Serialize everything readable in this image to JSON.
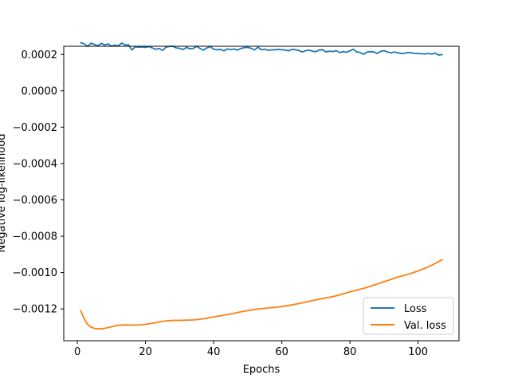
{
  "chart_data": {
    "type": "line",
    "title": "",
    "xlabel": "Epochs",
    "ylabel": "Negative log-likelihood",
    "xlim": [
      -4,
      112
    ],
    "ylim": [
      -0.001375,
      0.000245
    ],
    "xticks": [
      0,
      20,
      40,
      60,
      80,
      100
    ],
    "xtick_labels": [
      "0",
      "20",
      "40",
      "60",
      "80",
      "100"
    ],
    "yticks": [
      0.0002,
      0.0,
      -0.0002,
      -0.0004,
      -0.0006,
      -0.0008,
      -0.001,
      -0.0012
    ],
    "ytick_labels": [
      "0.0002",
      "0.0000",
      "−0.0002",
      "−0.0004",
      "−0.0006",
      "−0.0008",
      "−0.0010",
      "−0.0012"
    ],
    "grid": false,
    "legend_position": "lower-right",
    "series": [
      {
        "name": "Loss",
        "color": "#1f77b4",
        "x": [
          1,
          2,
          3,
          4,
          5,
          6,
          7,
          8,
          9,
          10,
          11,
          12,
          13,
          14,
          15,
          16,
          17,
          18,
          19,
          20,
          21,
          22,
          23,
          24,
          25,
          26,
          27,
          28,
          29,
          30,
          31,
          32,
          33,
          34,
          35,
          36,
          37,
          38,
          39,
          40,
          41,
          42,
          43,
          44,
          45,
          46,
          47,
          48,
          49,
          50,
          51,
          52,
          53,
          54,
          55,
          56,
          57,
          58,
          59,
          60,
          61,
          62,
          63,
          64,
          65,
          66,
          67,
          68,
          69,
          70,
          71,
          72,
          73,
          74,
          75,
          76,
          77,
          78,
          79,
          80,
          81,
          82,
          83,
          84,
          85,
          86,
          87,
          88,
          89,
          90,
          91,
          92,
          93,
          94,
          95,
          96,
          97,
          98,
          99,
          100,
          101,
          102,
          103,
          104,
          105,
          106,
          107
        ],
        "y": [
          0.000264,
          0.000259,
          0.000244,
          0.000262,
          0.000255,
          0.000248,
          0.000261,
          0.000252,
          0.000258,
          0.000245,
          0.000251,
          0.000247,
          0.000263,
          0.000252,
          0.000253,
          0.000225,
          0.000242,
          0.00024,
          0.000241,
          0.000239,
          0.000243,
          0.000236,
          0.000228,
          0.000233,
          0.000222,
          0.00024,
          0.000244,
          0.000245,
          0.000236,
          0.000234,
          0.000227,
          0.000239,
          0.000231,
          0.000233,
          0.000245,
          0.000233,
          0.000224,
          0.000236,
          0.000243,
          0.000229,
          0.000226,
          0.000228,
          0.00022,
          0.00023,
          0.000227,
          0.00023,
          0.000224,
          0.000233,
          0.000238,
          0.000239,
          0.000234,
          0.000225,
          0.00024,
          0.000226,
          0.000229,
          0.000223,
          0.000225,
          0.000226,
          0.000228,
          0.000226,
          0.000224,
          0.00022,
          0.000228,
          0.000226,
          0.000222,
          0.000214,
          0.000221,
          0.000224,
          0.000218,
          0.000215,
          0.000225,
          0.000226,
          0.000214,
          0.000218,
          0.000216,
          0.000221,
          0.00021,
          0.000216,
          0.000212,
          0.00022,
          0.000229,
          0.000214,
          0.000211,
          0.000201,
          0.000213,
          0.000215,
          0.000214,
          0.000205,
          0.000217,
          0.000221,
          0.000214,
          0.000209,
          0.000213,
          0.00021,
          0.000205,
          0.000206,
          0.000211,
          0.000209,
          0.000206,
          0.000205,
          0.000204,
          0.000203,
          0.000205,
          0.000202,
          0.000207,
          0.000197,
          0.000199
        ]
      },
      {
        "name": "Val. loss",
        "color": "#ff7f0e",
        "x": [
          1,
          2,
          3,
          4,
          5,
          6,
          7,
          8,
          9,
          10,
          12,
          14,
          16,
          18,
          20,
          22,
          24,
          26,
          28,
          30,
          32,
          34,
          36,
          38,
          40,
          42,
          44,
          46,
          48,
          50,
          52,
          54,
          56,
          58,
          60,
          62,
          64,
          66,
          68,
          70,
          72,
          74,
          76,
          78,
          80,
          82,
          84,
          86,
          88,
          90,
          92,
          94,
          96,
          98,
          100,
          102,
          104,
          106,
          107
        ],
        "y": [
          -0.00121,
          -0.001255,
          -0.001285,
          -0.0013,
          -0.001307,
          -0.00131,
          -0.00131,
          -0.001307,
          -0.001303,
          -0.001298,
          -0.00129,
          -0.001288,
          -0.001289,
          -0.001289,
          -0.001285,
          -0.001279,
          -0.001272,
          -0.001266,
          -0.001263,
          -0.001263,
          -0.001262,
          -0.001261,
          -0.001257,
          -0.001251,
          -0.001244,
          -0.001238,
          -0.001231,
          -0.001224,
          -0.001216,
          -0.001209,
          -0.001203,
          -0.001199,
          -0.001195,
          -0.001191,
          -0.001187,
          -0.001181,
          -0.001174,
          -0.001167,
          -0.001158,
          -0.00115,
          -0.001143,
          -0.001136,
          -0.001128,
          -0.001117,
          -0.001106,
          -0.001097,
          -0.001087,
          -0.001076,
          -0.001063,
          -0.00105,
          -0.001038,
          -0.001025,
          -0.001015,
          -0.001004,
          -0.000991,
          -0.000977,
          -0.00096,
          -0.00094,
          -0.00093
        ]
      }
    ]
  }
}
